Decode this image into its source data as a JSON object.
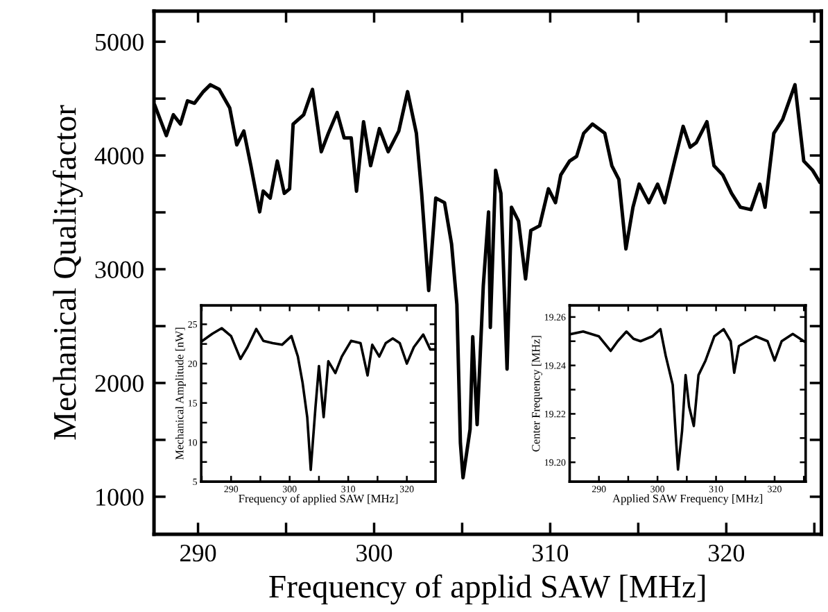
{
  "chart_data": [
    {
      "type": "line",
      "xlabel": "Frequency of applid SAW [MHz]",
      "ylabel": "Mechanical Qualityfactor",
      "grid": false,
      "marker": "none",
      "line_style": "solid",
      "xlim": [
        287.5,
        325.4
      ],
      "ylim": [
        670,
        5270
      ],
      "xticks": [
        290,
        {
          "value": 295,
          "label": null
        },
        300,
        {
          "value": 305,
          "label": null
        },
        310,
        {
          "value": 315,
          "label": null
        },
        320,
        {
          "value": 325,
          "label": null
        }
      ],
      "yticks": [
        1000,
        {
          "value": 1500,
          "label": null
        },
        2000,
        {
          "value": 2500,
          "label": null
        },
        3000,
        {
          "value": 3500,
          "label": null
        },
        4000,
        {
          "value": 4500,
          "label": null
        },
        5000
      ],
      "x": [
        287.55,
        288.2,
        288.6,
        289.0,
        289.4,
        289.8,
        290.3,
        290.7,
        291.2,
        291.8,
        292.2,
        292.6,
        293.0,
        293.5,
        293.7,
        294.1,
        294.5,
        294.9,
        295.2,
        295.4,
        296.0,
        296.5,
        297.0,
        297.4,
        297.9,
        298.3,
        298.7,
        299.0,
        299.4,
        299.8,
        300.3,
        300.8,
        301.4,
        301.9,
        302.4,
        302.7,
        303.1,
        303.5,
        304.0,
        304.4,
        304.7,
        304.9,
        305.05,
        305.45,
        305.6,
        305.85,
        306.2,
        306.5,
        306.6,
        306.9,
        307.2,
        307.55,
        307.8,
        308.2,
        308.6,
        308.9,
        309.4,
        309.9,
        310.3,
        310.6,
        311.1,
        311.5,
        311.9,
        312.4,
        313.1,
        313.5,
        313.9,
        314.3,
        314.7,
        315.05,
        315.6,
        316.1,
        316.5,
        317.0,
        317.55,
        317.95,
        318.3,
        318.9,
        319.3,
        319.8,
        320.3,
        320.8,
        321.4,
        321.9,
        322.2,
        322.7,
        323.2,
        323.9,
        324.4,
        324.9,
        325.3
      ],
      "series": [
        {
          "color": "#000000",
          "values": [
            4439,
            4175,
            4358,
            4276,
            4480,
            4459,
            4561,
            4622,
            4581,
            4419,
            4093,
            4215,
            3910,
            3504,
            3687,
            3626,
            3951,
            3667,
            3707,
            4276,
            4358,
            4581,
            4033,
            4195,
            4378,
            4154,
            4154,
            3687,
            4297,
            3910,
            4236,
            4033,
            4215,
            4561,
            4195,
            3667,
            2813,
            3626,
            3585,
            3220,
            2691,
            1472,
            1167,
            1593,
            2407,
            1634,
            2854,
            3504,
            2488,
            3870,
            3667,
            2122,
            3545,
            3423,
            2915,
            3341,
            3382,
            3707,
            3585,
            3829,
            3951,
            3992,
            4195,
            4276,
            4195,
            3910,
            3789,
            3179,
            3545,
            3748,
            3585,
            3748,
            3585,
            3910,
            4256,
            4073,
            4114,
            4297,
            3910,
            3829,
            3667,
            3545,
            3524,
            3748,
            3545,
            4195,
            4317,
            4622,
            3951,
            3870,
            3768
          ]
        }
      ]
    },
    {
      "type": "line",
      "xlabel": "Frequency of applied SAW [MHz]",
      "ylabel": "Mechanical Amplitude [nW]",
      "grid": false,
      "marker": "none",
      "line_style": "solid",
      "xlim": [
        284.9,
        324.9
      ],
      "ylim": [
        5,
        27.4
      ],
      "xticks": [
        {
          "value": 285,
          "label": null
        },
        290,
        {
          "value": 295,
          "label": null
        },
        300,
        {
          "value": 305,
          "label": null
        },
        310,
        {
          "value": 315,
          "label": null
        },
        320
      ],
      "yticks": [
        5,
        {
          "value": 7.5,
          "label": null
        },
        10,
        {
          "value": 12.5,
          "label": null
        },
        15,
        {
          "value": 17.5,
          "label": null
        },
        20,
        {
          "value": 22.5,
          "label": null
        },
        25
      ],
      "x": [
        285.1,
        286.8,
        288.4,
        290.0,
        291.6,
        292.8,
        294.3,
        295.5,
        297.1,
        298.7,
        300.3,
        301.4,
        302.2,
        303.0,
        303.6,
        304.4,
        305.0,
        305.8,
        306.6,
        307.8,
        308.9,
        310.5,
        312.1,
        313.3,
        314.1,
        315.3,
        316.4,
        317.6,
        318.8,
        320.0,
        321.2,
        322.8,
        324.0,
        324.7
      ],
      "series": [
        {
          "color": "#000000",
          "values": [
            22.9,
            23.8,
            24.5,
            23.5,
            20.6,
            22.1,
            24.4,
            22.9,
            22.6,
            22.4,
            23.5,
            20.9,
            17.6,
            13.2,
            6.5,
            14.4,
            19.7,
            13.2,
            20.3,
            18.8,
            20.9,
            22.9,
            22.6,
            18.5,
            22.4,
            20.9,
            22.6,
            23.2,
            22.6,
            20.0,
            22.1,
            23.7,
            21.8,
            21.8
          ]
        }
      ]
    },
    {
      "type": "line",
      "xlabel": "Applied SAW Frequency [MHz]",
      "ylabel": "Center Frequency [MHz]",
      "grid": false,
      "marker": "none",
      "line_style": "solid",
      "xlim": [
        285.0,
        325.3
      ],
      "ylim": [
        19.192,
        19.2648
      ],
      "xticks": [
        {
          "value": 285,
          "label": null
        },
        290,
        {
          "value": 295,
          "label": null
        },
        300,
        {
          "value": 305,
          "label": null
        },
        310,
        {
          "value": 315,
          "label": null
        },
        320,
        {
          "value": 325,
          "label": null
        }
      ],
      "yticks": [
        {
          "value": 19.2,
          "label": "19.20"
        },
        {
          "value": 19.21,
          "label": null
        },
        {
          "value": 19.22,
          "label": "19.22"
        },
        {
          "value": 19.23,
          "label": null
        },
        {
          "value": 19.24,
          "label": "19.24"
        },
        {
          "value": 19.25,
          "label": null
        },
        {
          "value": 19.26,
          "label": "19.26"
        }
      ],
      "x": [
        285.3,
        287.3,
        290.0,
        292.0,
        293.2,
        294.7,
        295.9,
        297.1,
        299.1,
        300.5,
        301.4,
        302.6,
        303.2,
        303.5,
        304.2,
        304.8,
        305.4,
        306.2,
        307.0,
        308.2,
        309.7,
        311.3,
        312.5,
        313.1,
        313.9,
        315.3,
        316.8,
        318.8,
        320.0,
        321.2,
        323.1,
        325.0
      ],
      "series": [
        {
          "color": "#000000",
          "values": [
            19.253,
            19.254,
            19.252,
            19.246,
            19.25,
            19.254,
            19.251,
            19.25,
            19.252,
            19.255,
            19.244,
            19.232,
            19.208,
            19.197,
            19.213,
            19.236,
            19.223,
            19.215,
            19.236,
            19.242,
            19.252,
            19.255,
            19.25,
            19.237,
            19.248,
            19.25,
            19.252,
            19.25,
            19.242,
            19.25,
            19.253,
            19.25
          ]
        }
      ]
    }
  ]
}
